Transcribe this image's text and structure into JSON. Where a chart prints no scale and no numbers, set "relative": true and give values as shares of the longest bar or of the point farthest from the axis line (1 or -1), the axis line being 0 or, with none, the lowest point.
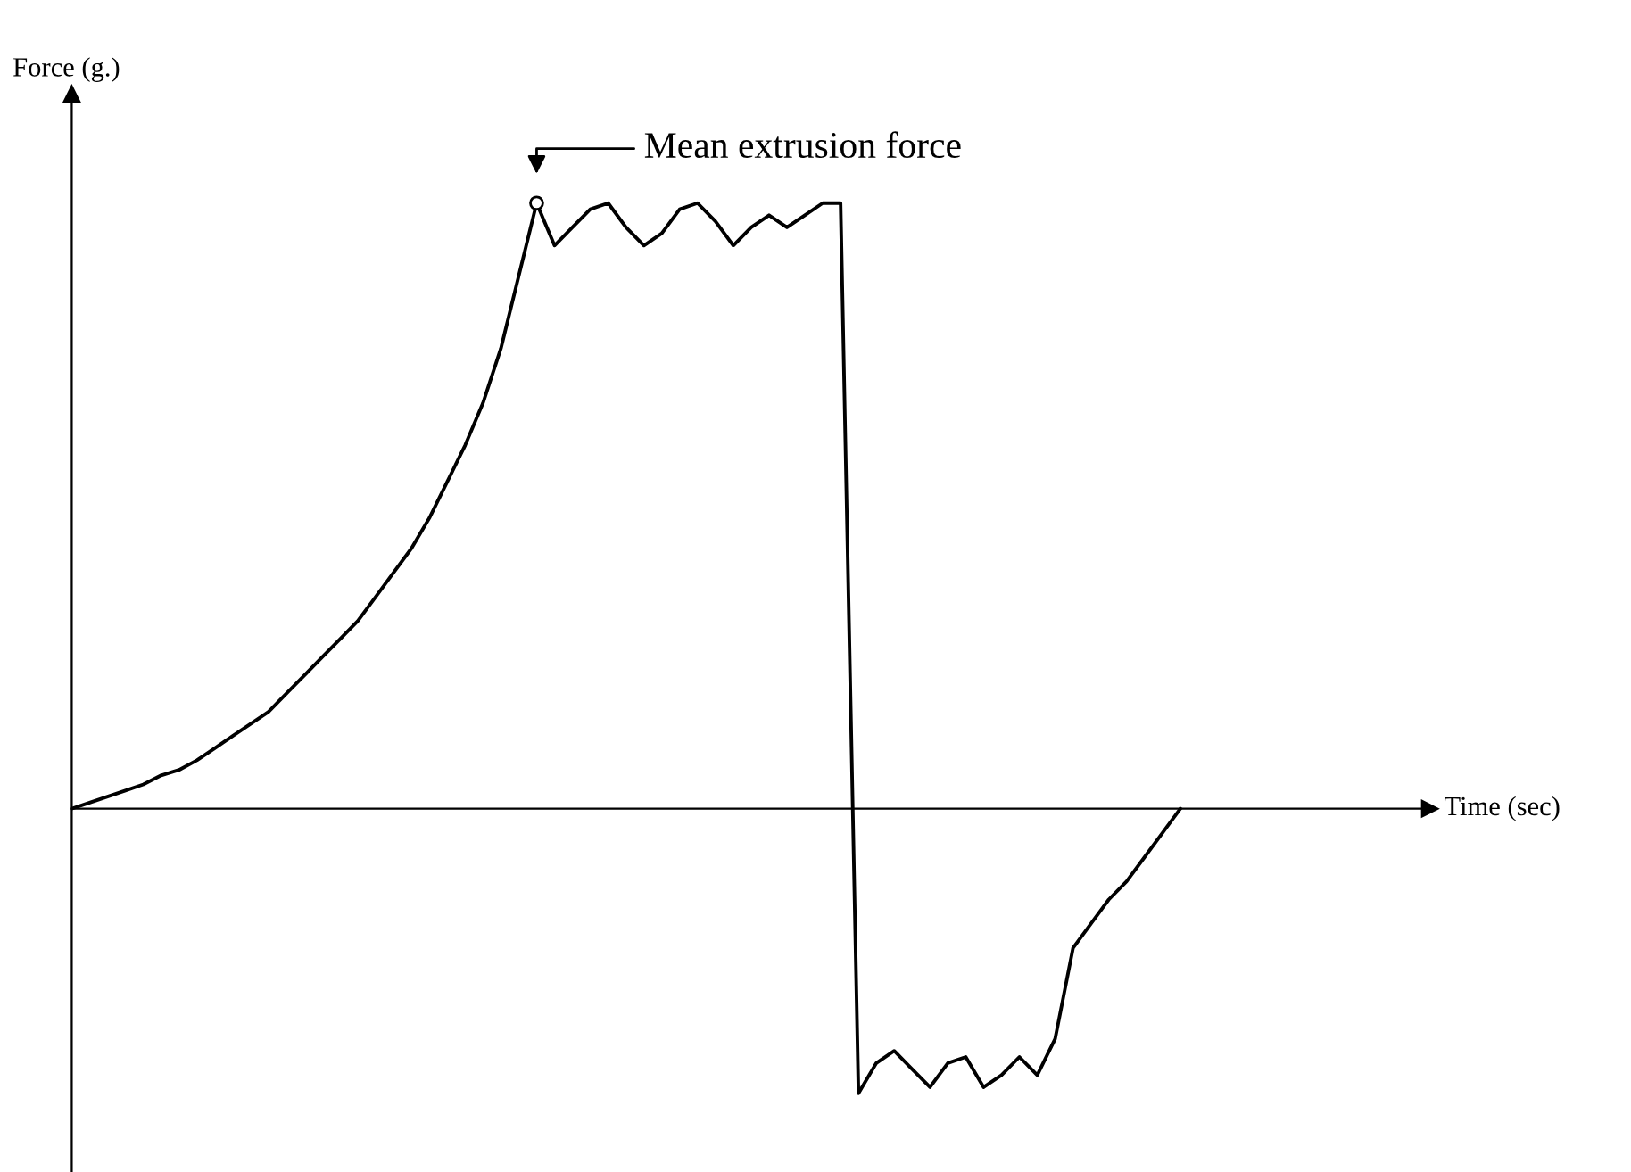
{
  "chart_data": {
    "type": "line",
    "relative": true,
    "ylabel": "Force (g.)",
    "annotations": [
      "Mean extrusion force",
      "Time (sec)"
    ],
    "color": "#000000",
    "legend": false,
    "marker": "none",
    "line_style": "solid",
    "categories": [
      null,
      null,
      null,
      null,
      null,
      null,
      null,
      null,
      null,
      null,
      null,
      null,
      null,
      null,
      null,
      null,
      null,
      null,
      null,
      null,
      null,
      null,
      null,
      null,
      null,
      null,
      null,
      null,
      null,
      null,
      null,
      null,
      null,
      null,
      null,
      null,
      null,
      null,
      null,
      null,
      null,
      null,
      null,
      null,
      null,
      null,
      null,
      null,
      null,
      null,
      null,
      null,
      null,
      null,
      null,
      null,
      null,
      null,
      null,
      null,
      null,
      null,
      null
    ],
    "values": [
      0,
      0.01,
      0.02,
      0.03,
      0.04,
      0.055,
      0.064,
      0.08,
      0.1,
      0.12,
      0.14,
      0.16,
      0.19,
      0.22,
      0.25,
      0.28,
      0.31,
      0.35,
      0.39,
      0.43,
      0.48,
      0.54,
      0.6,
      0.67,
      0.76,
      0.88,
      1.0,
      0.93,
      0.96,
      0.99,
      1.0,
      0.96,
      0.93,
      0.95,
      0.99,
      1.0,
      0.97,
      0.93,
      0.96,
      0.98,
      0.96,
      0.98,
      1.0,
      1.0,
      -0.47,
      -0.42,
      -0.4,
      -0.43,
      -0.46,
      -0.42,
      -0.41,
      -0.46,
      -0.44,
      -0.41,
      -0.44,
      -0.38,
      -0.23,
      -0.19,
      -0.15,
      -0.12,
      -0.08,
      -0.04,
      0
    ]
  }
}
